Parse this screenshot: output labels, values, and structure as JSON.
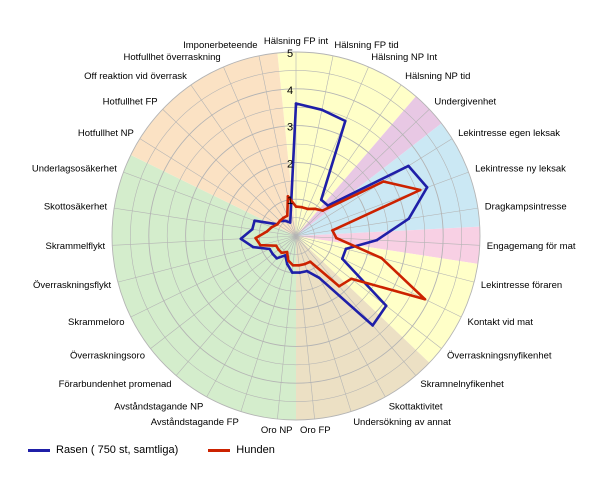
{
  "chart_data": {
    "type": "radar",
    "categories": [
      "Hälsning FP int",
      "Hälsning FP tid",
      "Hälsning NP Int",
      "Hälsning NP tid",
      "Undergivenhet",
      "Lekintresse egen leksak",
      "Lekintresse ny leksak",
      "Dragkampsintresse",
      "Engagemang för mat",
      "Lekintresse föraren",
      "Kontakt vid mat",
      "Överraskningsnyfikenhet",
      "Skramnelnyfikenhet",
      "Skottaktivitet",
      "Undersökning av annat",
      "Oro FP",
      "Oro NP",
      "Avståndstagande FP",
      "Avståndstagande NP",
      "Förarbundenhet promenad",
      "Överraskningsoro",
      "Skrammeloro",
      "Överraskningsflykt",
      "Skrammelflykt",
      "Skottosäkerhet",
      "Underlagsosäkerhet",
      "Hotfullhet NP",
      "Hotfullhet FP",
      "Off reaktion vid överrask",
      "Hotfullhet överraskning",
      "Imponerbeteende"
    ],
    "rlim": [
      0,
      5
    ],
    "ticks": [
      "1",
      "2",
      "3",
      "4",
      "5"
    ],
    "series": [
      {
        "name": "Rasen ( 750 st, samtliga)",
        "color": "#1f1fa8",
        "values": [
          3.6,
          3.5,
          3.4,
          1.2,
          1.2,
          3.6,
          3.8,
          3.1,
          2.2,
          1.4,
          1.4,
          3.1,
          3.2,
          1.3,
          1.0,
          1.0,
          1.0,
          0.8,
          0.6,
          0.8,
          0.8,
          0.8,
          1.2,
          1.5,
          1.2,
          1.2,
          0.6,
          0.6,
          0.5,
          0.4,
          0.7
        ]
      },
      {
        "name": "Hunden",
        "color": "#cc2200",
        "values": [
          0.8,
          0.8,
          0.8,
          0.9,
          1.0,
          2.8,
          3.6,
          1.0,
          1.1,
          2.4,
          3.9,
          1.9,
          1.8,
          0.8,
          0.8,
          0.8,
          0.8,
          0.7,
          0.5,
          0.6,
          0.6,
          0.6,
          1.0,
          1.1,
          0.8,
          0.7,
          0.6,
          0.6,
          0.6,
          0.6,
          1.1
        ]
      }
    ],
    "sectors": [
      {
        "from": 0,
        "to": 3,
        "color": "#ffffc8"
      },
      {
        "from": 4,
        "to": 4,
        "color": "#e8c8e4"
      },
      {
        "from": 5,
        "to": 7,
        "color": "#cbe8f4"
      },
      {
        "from": 8,
        "to": 8,
        "color": "#f8d0e4"
      },
      {
        "from": 9,
        "to": 11,
        "color": "#ffffc8"
      },
      {
        "from": 12,
        "to": 15,
        "color": "#ece0c4"
      },
      {
        "from": 16,
        "to": 25,
        "color": "#d4edcc"
      },
      {
        "from": 26,
        "to": 30,
        "color": "#fbe2c4"
      }
    ],
    "grid": true,
    "legend_position": "bottom-left"
  }
}
